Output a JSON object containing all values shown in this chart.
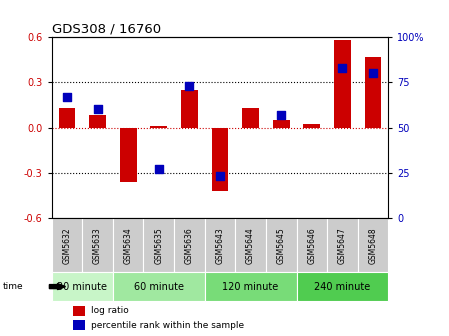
{
  "title": "GDS308 / 16760",
  "samples": [
    "GSM5632",
    "GSM5633",
    "GSM5634",
    "GSM5635",
    "GSM5636",
    "GSM5643",
    "GSM5644",
    "GSM5645",
    "GSM5646",
    "GSM5647",
    "GSM5648"
  ],
  "log_ratio": [
    0.13,
    0.08,
    -0.36,
    0.01,
    0.25,
    -0.42,
    0.13,
    0.05,
    0.02,
    0.58,
    0.47
  ],
  "percentile_rank": [
    67,
    60,
    null,
    27,
    73,
    23,
    null,
    57,
    null,
    83,
    80
  ],
  "groups": [
    {
      "label": "30 minute",
      "indices": [
        0,
        1
      ],
      "color": "#c8f5c8"
    },
    {
      "label": "60 minute",
      "indices": [
        2,
        3,
        4
      ],
      "color": "#a0e8a0"
    },
    {
      "label": "120 minute",
      "indices": [
        5,
        6,
        7
      ],
      "color": "#78dc78"
    },
    {
      "label": "240 minute",
      "indices": [
        8,
        9,
        10
      ],
      "color": "#50cc50"
    }
  ],
  "bar_color": "#cc0000",
  "dot_color": "#0000bb",
  "ylim_left": [
    -0.6,
    0.6
  ],
  "ylim_right": [
    0,
    100
  ],
  "yticks_left": [
    -0.6,
    -0.3,
    0.0,
    0.3,
    0.6
  ],
  "yticks_right": [
    0,
    25,
    50,
    75,
    100
  ],
  "ytick_labels_right": [
    "0",
    "25",
    "50",
    "75",
    "100%"
  ],
  "hlines": [
    0.3,
    0.0,
    -0.3
  ],
  "hline_colors": [
    "black",
    "#cc0000",
    "black"
  ],
  "hline_styles": [
    "dotted",
    "dotted",
    "dotted"
  ],
  "bg_color": "#ffffff",
  "bar_width": 0.55,
  "dot_size": 28,
  "sample_box_color": "#cccccc",
  "group_label_fontsize": 7,
  "sample_label_fontsize": 5.5
}
